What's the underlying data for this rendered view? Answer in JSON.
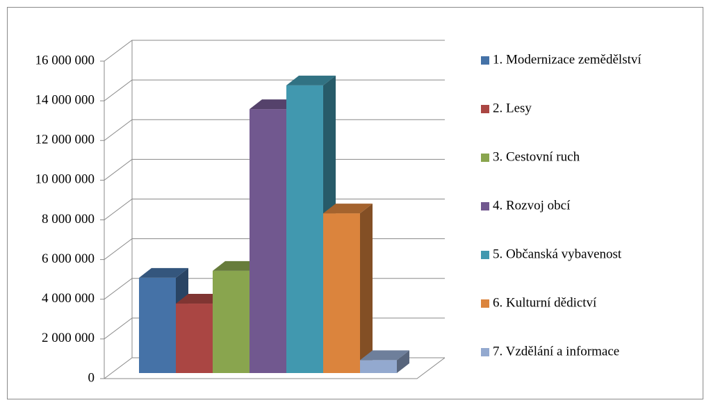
{
  "chart_data": {
    "type": "bar3d",
    "categories": [
      null
    ],
    "series": [
      {
        "name": "1. Modernizace zemědělství",
        "color": "#4572a7",
        "values": [
          4800000
        ]
      },
      {
        "name": "2. Lesy",
        "color": "#aa4643",
        "values": [
          3500000
        ]
      },
      {
        "name": "3. Cestovní ruch",
        "color": "#89a54e",
        "values": [
          5150000
        ]
      },
      {
        "name": "4. Rozvoj obcí",
        "color": "#71588f",
        "values": [
          13300000
        ]
      },
      {
        "name": "5. Občanská vybavenost",
        "color": "#4198af",
        "values": [
          14500000
        ]
      },
      {
        "name": "6. Kulturní dědictví",
        "color": "#db843d",
        "values": [
          8050000
        ]
      },
      {
        "name": "7. Vzdělání a informace",
        "color": "#93a9cf",
        "values": [
          650000
        ]
      }
    ],
    "ylim": [
      0,
      16000000
    ],
    "yticks": [
      0,
      {
        "value": 2000000,
        "label": "2 000 000"
      },
      {
        "value": 4000000,
        "label": "4 000 000"
      },
      {
        "value": 6000000,
        "label": "6 000 000"
      },
      {
        "value": 8000000,
        "label": "8 000 000"
      },
      {
        "value": 10000000,
        "label": "10 000 000"
      },
      {
        "value": 12000000,
        "label": "12 000 000"
      },
      {
        "value": 14000000,
        "label": "14 000 000"
      },
      {
        "value": 16000000,
        "label": "16 000 000"
      }
    ],
    "grid": true,
    "legend": "right"
  }
}
